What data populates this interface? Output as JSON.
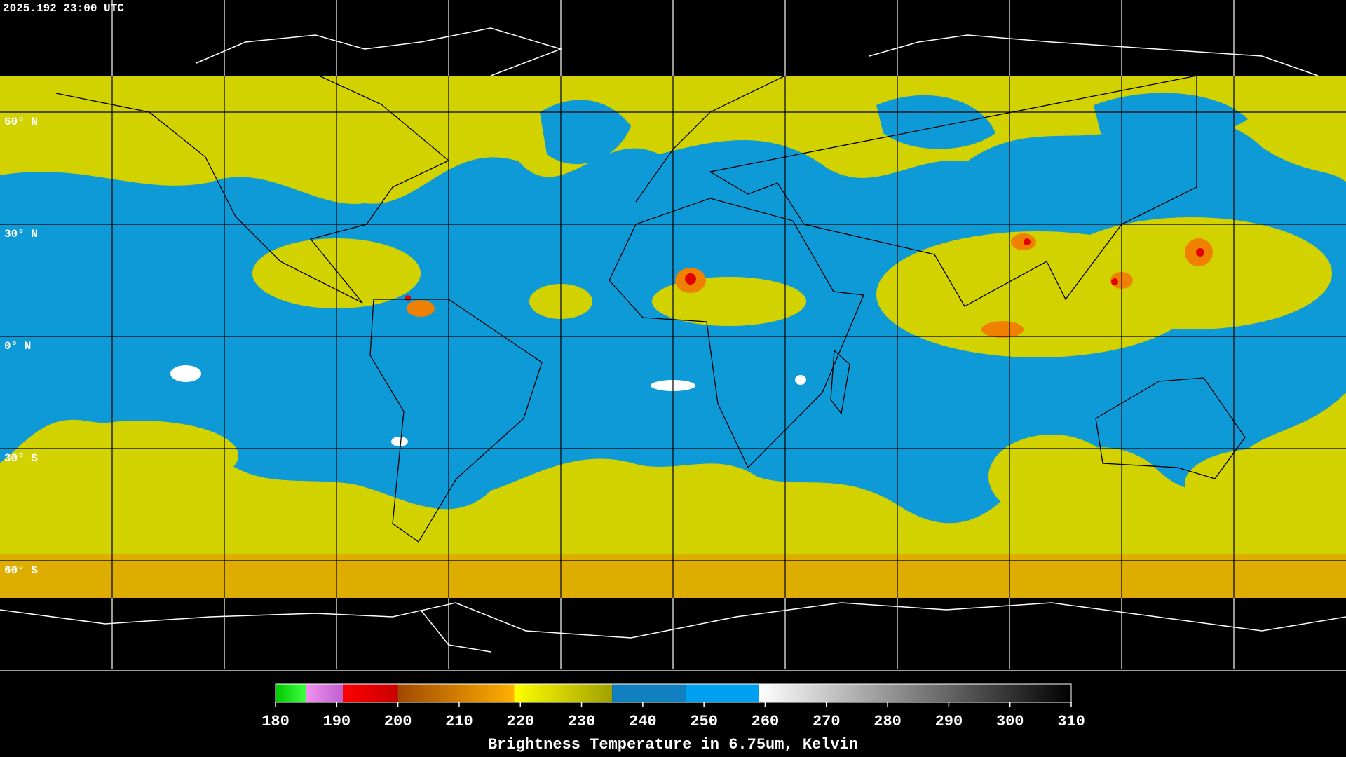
{
  "header": {
    "timestamp": "2025.192 23:00 UTC"
  },
  "map": {
    "lat_labels": [
      "60° N",
      "30° N",
      "0° N",
      "30° S",
      "60° S"
    ]
  },
  "colorbar": {
    "label": "Brightness Temperature in 6.75um, Kelvin",
    "range": [
      180,
      310
    ],
    "ticks": [
      180,
      190,
      200,
      210,
      220,
      230,
      240,
      250,
      260,
      270,
      280,
      290,
      300,
      310
    ],
    "segments": [
      {
        "from": 180,
        "to": 185,
        "colors": [
          "#00c800",
          "#40ff40"
        ]
      },
      {
        "from": 185,
        "to": 191,
        "colors": [
          "#f090f0",
          "#c060d0"
        ]
      },
      {
        "from": 191,
        "to": 200,
        "colors": [
          "#ff0000",
          "#c80000"
        ]
      },
      {
        "from": 200,
        "to": 219,
        "colors": [
          "#a04800",
          "#ffb000"
        ]
      },
      {
        "from": 219,
        "to": 235,
        "colors": [
          "#ffff00",
          "#a0a000"
        ]
      },
      {
        "from": 235,
        "to": 247,
        "colors": [
          "#1080c0",
          "#1080c0"
        ]
      },
      {
        "from": 247,
        "to": 259,
        "colors": [
          "#00a0f0",
          "#00a0f0"
        ]
      },
      {
        "from": 259,
        "to": 310,
        "colors": [
          "#ffffff",
          "#000000"
        ]
      }
    ]
  }
}
